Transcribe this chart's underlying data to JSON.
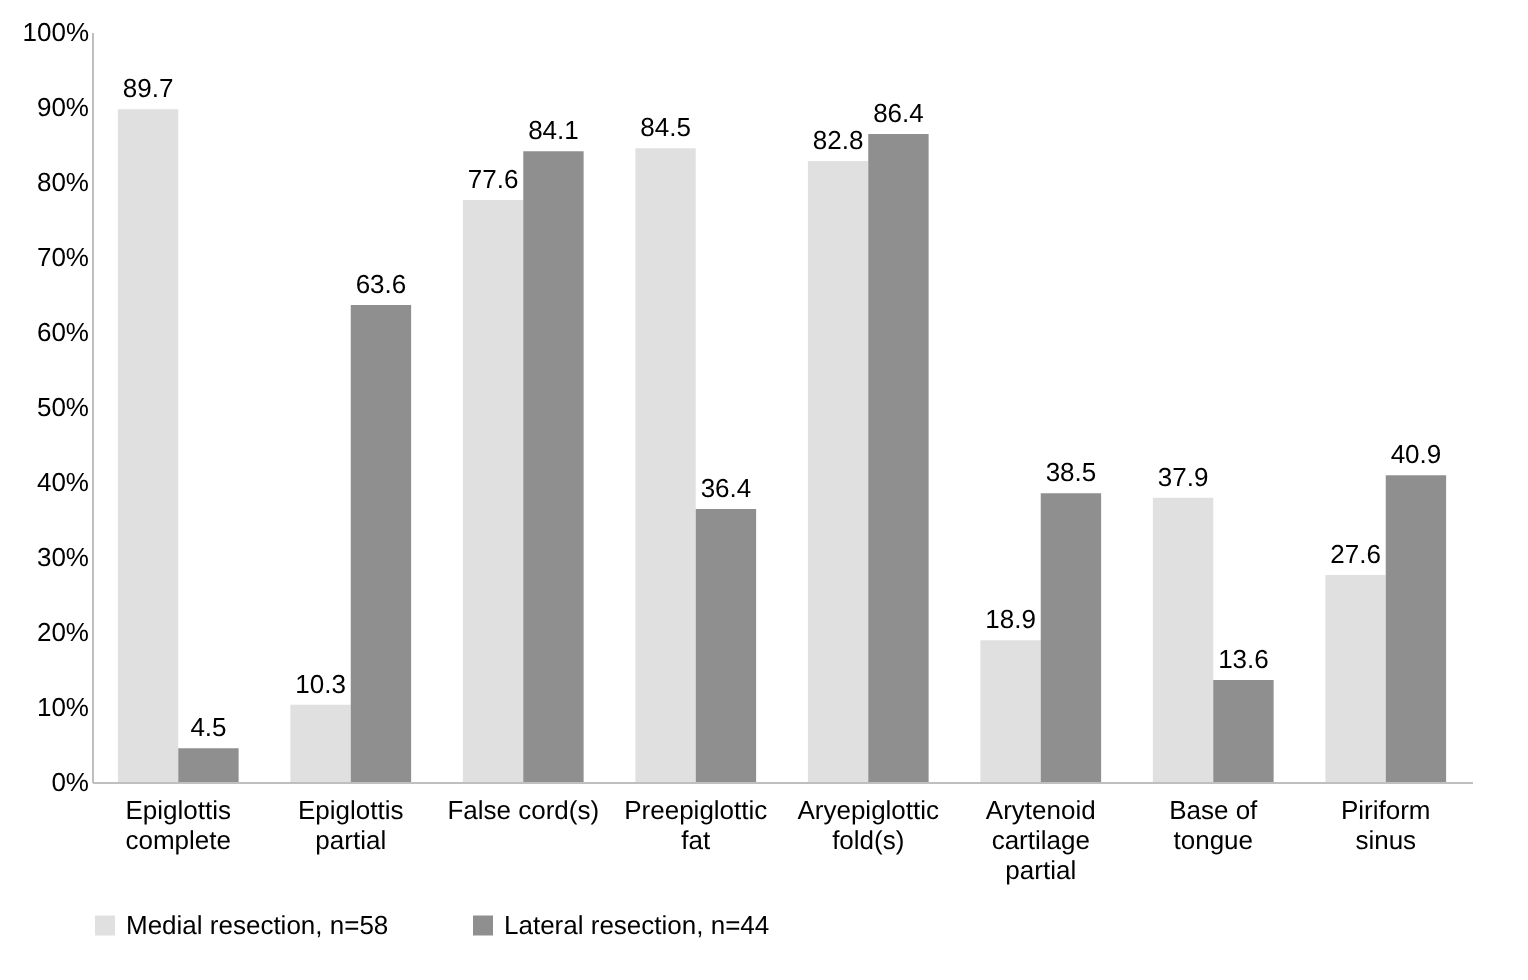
{
  "chart_data": {
    "type": "bar",
    "categories": [
      "Epiglottis complete",
      "Epiglottis partial",
      "False cord(s)",
      "Preepiglottic fat",
      "Aryepiglottic fold(s)",
      "Arytenoid cartilage partial",
      "Base of tongue",
      "Piriform sinus"
    ],
    "series": [
      {
        "name": "Medial resection, n=58",
        "color": "#e0e0e0",
        "values": [
          89.7,
          10.3,
          77.6,
          84.5,
          82.8,
          18.9,
          37.9,
          27.6
        ]
      },
      {
        "name": "Lateral resection, n=44",
        "color": "#8f8f8f",
        "values": [
          4.5,
          63.6,
          84.1,
          36.4,
          86.4,
          38.5,
          13.6,
          40.9
        ]
      }
    ],
    "ylim": [
      0,
      100
    ],
    "yticks": [
      {
        "value": 0,
        "label": "0%"
      },
      {
        "value": 10,
        "label": "10%"
      },
      {
        "value": 20,
        "label": "20%"
      },
      {
        "value": 30,
        "label": "30%"
      },
      {
        "value": 40,
        "label": "40%"
      },
      {
        "value": 50,
        "label": "50%"
      },
      {
        "value": 60,
        "label": "60%"
      },
      {
        "value": 70,
        "label": "70%"
      },
      {
        "value": 80,
        "label": "80%"
      },
      {
        "value": 90,
        "label": "90%"
      },
      {
        "value": 100,
        "label": "100%"
      }
    ],
    "data_labels": true,
    "legend": "bottom",
    "grid": false
  }
}
